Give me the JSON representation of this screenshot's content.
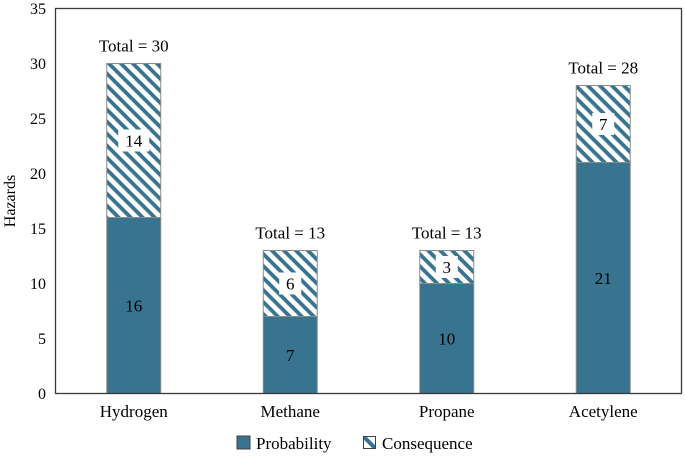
{
  "chart_data": {
    "type": "bar",
    "stacked": true,
    "title": "",
    "xlabel": "",
    "ylabel": "Hazards",
    "ylim": [
      0,
      35
    ],
    "ytick_step": 5,
    "ytick_labels": [
      "0",
      "5",
      "10",
      "15",
      "20",
      "25",
      "30",
      "35"
    ],
    "grid": false,
    "categories": [
      "Hydrogen",
      "Methane",
      "Propane",
      "Acetylene"
    ],
    "series": [
      {
        "name": "Probability",
        "style": "solid",
        "values": [
          16,
          7,
          10,
          21
        ]
      },
      {
        "name": "Consequence",
        "style": "hatched",
        "values": [
          14,
          6,
          3,
          7
        ]
      }
    ],
    "totals": [
      30,
      13,
      13,
      28
    ],
    "total_labels": [
      "Total = 30",
      "Total = 13",
      "Total = 13",
      "Total = 28"
    ],
    "legend": {
      "position": "bottom-center",
      "entries": [
        "Probability",
        "Consequence"
      ]
    },
    "colors": {
      "fill": "#38738F",
      "hatch": "#38738F",
      "hatch_background": "#FFFFFF",
      "bar_border": "#8C8C8C",
      "axis": "#3A3A3A",
      "legend_marker_border": "#404040",
      "label_box": "#FFFFFF",
      "text": "#000000",
      "background": "#FFFFFF"
    }
  }
}
